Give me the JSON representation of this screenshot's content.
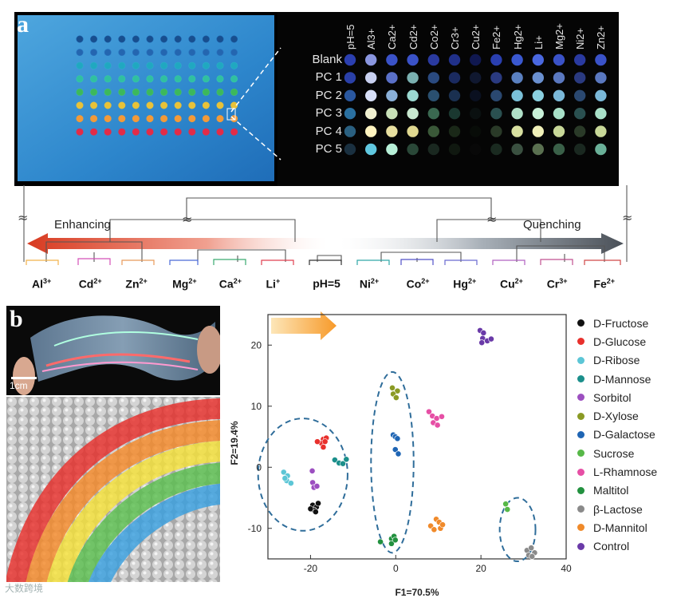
{
  "panel_a": {
    "letter": "a",
    "column_labels": [
      "pH=5",
      "Al3+",
      "Ca2+",
      "Cd2+",
      "Co2+",
      "Cr3+",
      "Cu2+",
      "Fe2+",
      "Hg2+",
      "Li+",
      "Mg2+",
      "Ni2+",
      "Zn2+"
    ],
    "row_labels": [
      "Blank",
      "PC 1",
      "PC 2",
      "PC 3",
      "PC 4",
      "PC 5"
    ],
    "dendrogram": {
      "enhancing_label": "Enhancing",
      "quenching_label": "Quenching",
      "leaves": [
        {
          "base": "Al",
          "sup": "3+"
        },
        {
          "base": "Cd",
          "sup": "2+"
        },
        {
          "base": "Zn",
          "sup": "2+"
        },
        {
          "base": "Mg",
          "sup": "2+"
        },
        {
          "base": "Ca",
          "sup": "2+"
        },
        {
          "base": "Li",
          "sup": "+"
        },
        {
          "base": "pH=5",
          "sup": ""
        },
        {
          "base": "Ni",
          "sup": "2+"
        },
        {
          "base": "Co",
          "sup": "2+"
        },
        {
          "base": "Hg",
          "sup": "2+"
        },
        {
          "base": "Cu",
          "sup": "2+"
        },
        {
          "base": "Cr",
          "sup": "3+"
        },
        {
          "base": "Fe",
          "sup": "2+"
        }
      ],
      "break_symbol": "≈"
    }
  },
  "panel_b": {
    "letter": "b",
    "scale_bar": "1cm",
    "watermark": "大数跨境",
    "chart_data": {
      "type": "scatter",
      "xlabel": "F1=70.5%",
      "ylabel": "F2=19.4%",
      "xlim": [
        -30,
        40
      ],
      "ylim": [
        -15,
        25
      ],
      "xticks": [
        -20,
        0,
        20,
        40
      ],
      "yticks": [
        -10,
        0,
        10,
        20
      ],
      "series": [
        {
          "name": "D-Fructose",
          "color": "#111111",
          "points": [
            [
              -19.5,
              -6.2
            ],
            [
              -18.6,
              -6.5
            ],
            [
              -19.2,
              -7.0
            ],
            [
              -18.2,
              -5.9
            ],
            [
              -20.0,
              -6.8
            ],
            [
              -18.8,
              -7.3
            ]
          ]
        },
        {
          "name": "D-Glucose",
          "color": "#e8302c",
          "points": [
            [
              -17.0,
              4.6
            ],
            [
              -16.3,
              4.8
            ],
            [
              -17.4,
              3.9
            ],
            [
              -16.6,
              4.2
            ],
            [
              -17.0,
              3.3
            ],
            [
              -18.4,
              4.2
            ]
          ]
        },
        {
          "name": "D-Ribose",
          "color": "#5cc6d6",
          "points": [
            [
              -26.3,
              -0.8
            ],
            [
              -25.4,
              -1.4
            ],
            [
              -25.6,
              -2.2
            ],
            [
              -24.6,
              -2.6
            ],
            [
              -26.0,
              -1.8
            ]
          ]
        },
        {
          "name": "D-Mannose",
          "color": "#1b8f8b",
          "points": [
            [
              -14.3,
              1.2
            ],
            [
              -13.3,
              0.7
            ],
            [
              -12.4,
              0.6
            ],
            [
              -11.6,
              1.3
            ]
          ]
        },
        {
          "name": "Sorbitol",
          "color": "#9c4fc0",
          "points": [
            [
              -19.6,
              -0.6
            ],
            [
              -19.5,
              -2.5
            ],
            [
              -19.2,
              -3.3
            ],
            [
              -18.5,
              -3.1
            ]
          ]
        },
        {
          "name": "D-Xylose",
          "color": "#8a9a24",
          "points": [
            [
              -0.8,
              13.0
            ],
            [
              0.4,
              12.5
            ],
            [
              -0.6,
              12.0
            ],
            [
              0.1,
              11.4
            ]
          ]
        },
        {
          "name": "D-Galactose",
          "color": "#1f65b4",
          "points": [
            [
              -0.6,
              5.3
            ],
            [
              -0.1,
              5.0
            ],
            [
              0.4,
              4.7
            ],
            [
              -0.1,
              2.9
            ],
            [
              0.6,
              2.2
            ]
          ]
        },
        {
          "name": "Sucrose",
          "color": "#57b848",
          "points": [
            [
              25.8,
              -6.0
            ],
            [
              26.2,
              -6.9
            ]
          ]
        },
        {
          "name": "L-Rhamnose",
          "color": "#e64fa5",
          "points": [
            [
              7.8,
              9.1
            ],
            [
              8.6,
              8.4
            ],
            [
              9.6,
              8.0
            ],
            [
              10.8,
              8.3
            ],
            [
              8.8,
              7.3
            ],
            [
              9.8,
              6.9
            ]
          ]
        },
        {
          "name": "Maltitol",
          "color": "#22913f",
          "points": [
            [
              -3.6,
              -12.2
            ],
            [
              -1.0,
              -11.7
            ],
            [
              -0.4,
              -11.3
            ],
            [
              -1.0,
              -12.5
            ],
            [
              -0.1,
              -11.9
            ]
          ]
        },
        {
          "name": "β-Lactose",
          "color": "#8a8a8a",
          "points": [
            [
              30.8,
              -13.6
            ],
            [
              31.8,
              -13.2
            ],
            [
              32.6,
              -14.0
            ],
            [
              31.2,
              -14.4
            ],
            [
              32.0,
              -14.6
            ]
          ]
        },
        {
          "name": "D-Mannitol",
          "color": "#f08a2a",
          "points": [
            [
              9.5,
              -8.5
            ],
            [
              10.2,
              -9.0
            ],
            [
              8.2,
              -9.6
            ],
            [
              9.0,
              -10.2
            ],
            [
              10.5,
              -10.0
            ],
            [
              11.0,
              -9.4
            ]
          ]
        },
        {
          "name": "Control",
          "color": "#6a3aa8",
          "points": [
            [
              19.8,
              22.4
            ],
            [
              20.6,
              22.0
            ],
            [
              20.4,
              21.1
            ],
            [
              21.5,
              20.7
            ],
            [
              22.4,
              21.0
            ],
            [
              20.2,
              20.4
            ]
          ]
        }
      ],
      "cluster_ellipses": [
        {
          "cx": -21.8,
          "cy": -1.2,
          "rx": 10.5,
          "ry": 9.2
        },
        {
          "cx": -0.8,
          "cy": 0.8,
          "rx": 5.0,
          "ry": 14.8
        },
        {
          "cx": 28.6,
          "cy": -10.2,
          "rx": 4.2,
          "ry": 5.2
        }
      ]
    }
  }
}
